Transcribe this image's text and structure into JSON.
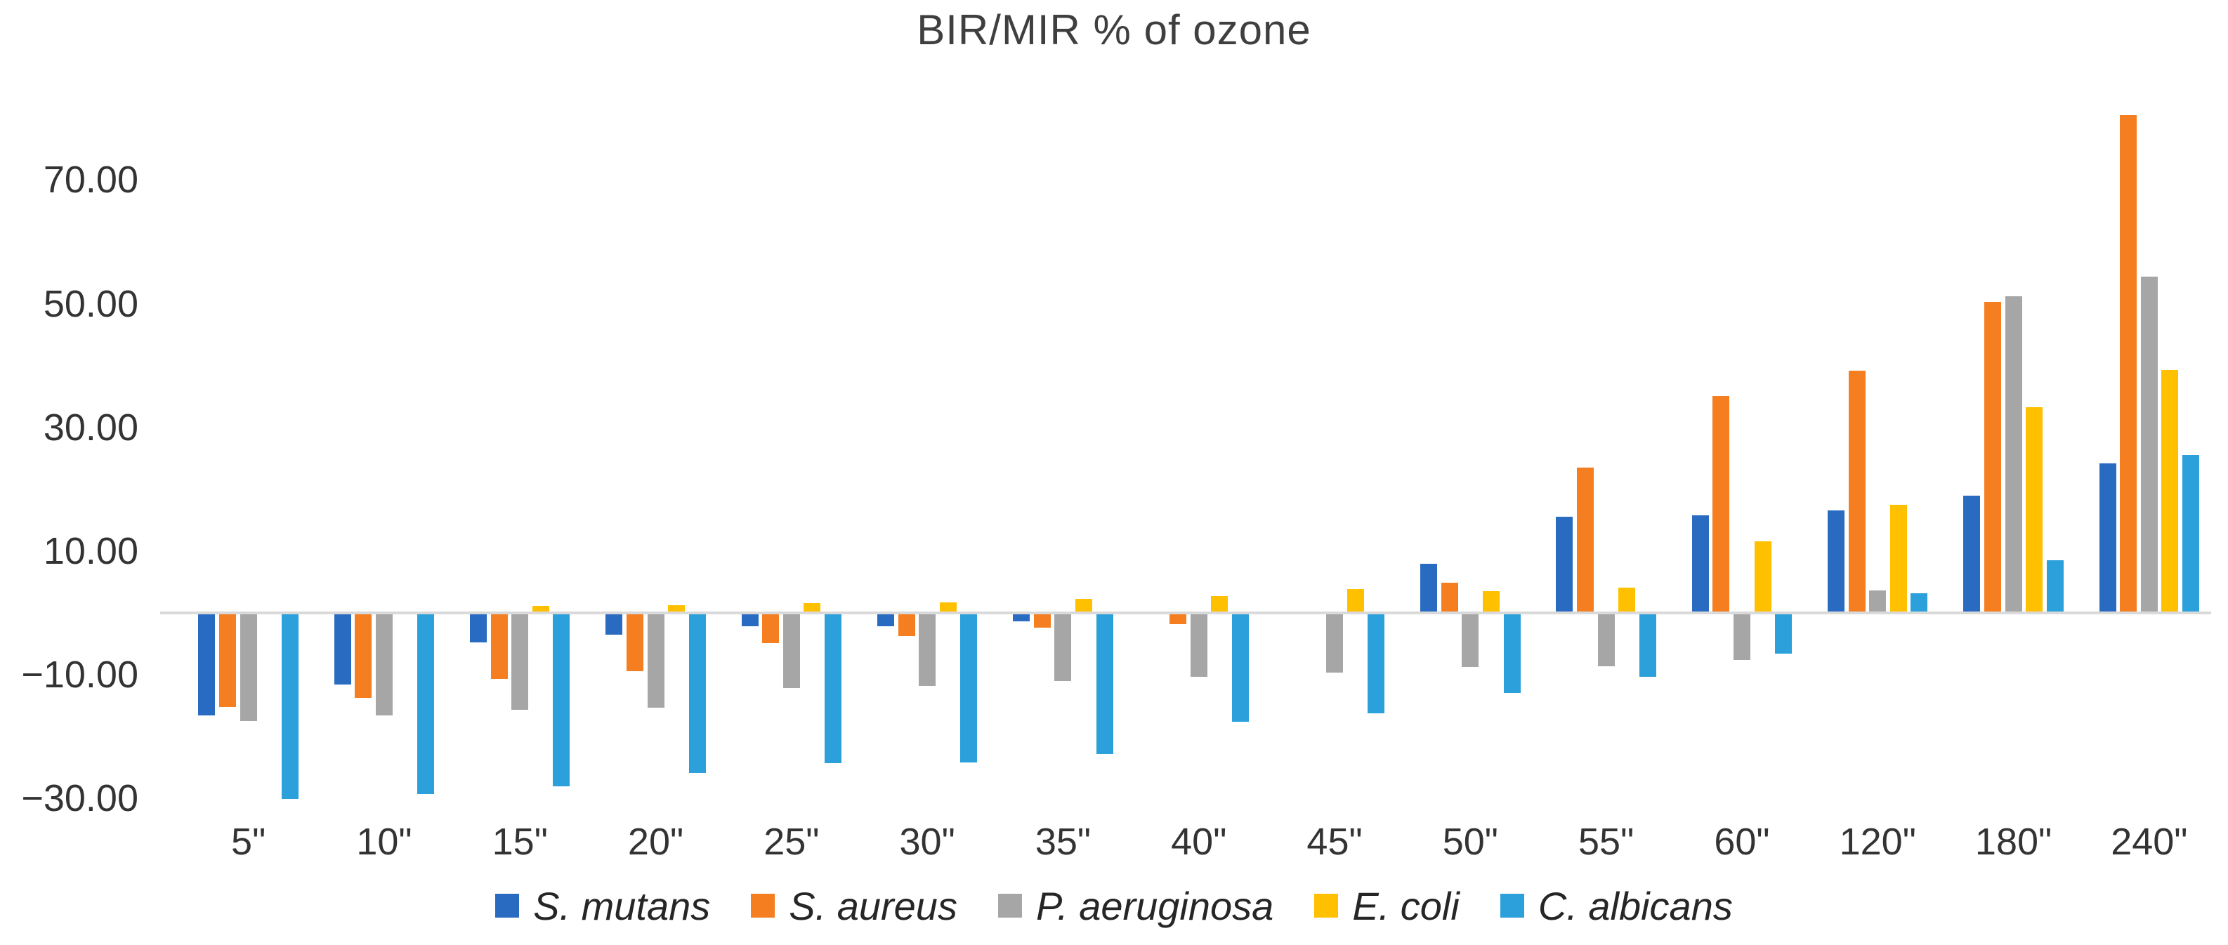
{
  "title": "BIR/MIR % of ozone",
  "chart_data": {
    "type": "bar",
    "title": "BIR/MIR % of ozone",
    "xlabel": "",
    "ylabel": "",
    "grid": false,
    "legend_position": "bottom",
    "baseline_color": "#d9d9d9",
    "ylim": [
      -33,
      83
    ],
    "y_tick_values": [
      70,
      50,
      30,
      10,
      -10,
      -30
    ],
    "y_tick_labels": [
      "70.00",
      "50.00",
      "30.00",
      "10.00",
      "−10.00",
      "−30.00"
    ],
    "categories": [
      "5\"",
      "10\"",
      "15\"",
      "20\"",
      "25\"",
      "30\"",
      "35\"",
      "40\"",
      "45\"",
      "50\"",
      "55\"",
      "60\"",
      "120\"",
      "180\"",
      "240\""
    ],
    "series": [
      {
        "name": "S. mutans",
        "color": "#2a6bc2",
        "values": [
          -16.4,
          -11.3,
          -4.5,
          -3.3,
          -1.9,
          -1.9,
          -1.1,
          0,
          0,
          7.7,
          15.3,
          15.6,
          16.4,
          18.7,
          24.0
        ]
      },
      {
        "name": "S. aureus",
        "color": "#f57e21",
        "values": [
          -15.0,
          -13.5,
          -10.4,
          -9.2,
          -4.7,
          -3.5,
          -2.1,
          -1.6,
          0,
          4.7,
          23.3,
          34.8,
          38.9,
          50.1,
          80.2
        ]
      },
      {
        "name": "P. aeruginosa",
        "color": "#a6a6a6",
        "values": [
          -17.2,
          -16.4,
          -15.4,
          -15.1,
          -11.9,
          -11.6,
          -10.8,
          -10.1,
          -9.4,
          -8.5,
          -8.4,
          -7.4,
          3.4,
          51.0,
          54.1
        ]
      },
      {
        "name": "E. coli",
        "color": "#ffc000",
        "values": [
          0,
          0,
          0.9,
          1.0,
          1.4,
          1.5,
          2.0,
          2.5,
          3.6,
          3.3,
          3.9,
          11.3,
          17.2,
          33.0,
          39.1
        ]
      },
      {
        "name": "C. albicans",
        "color": "#2ba0da",
        "values": [
          -29.9,
          -29.1,
          -27.8,
          -25.6,
          -24.1,
          -23.9,
          -22.6,
          -17.4,
          -16.0,
          -12.7,
          -10.1,
          -6.4,
          2.9,
          8.3,
          25.3
        ]
      }
    ]
  }
}
